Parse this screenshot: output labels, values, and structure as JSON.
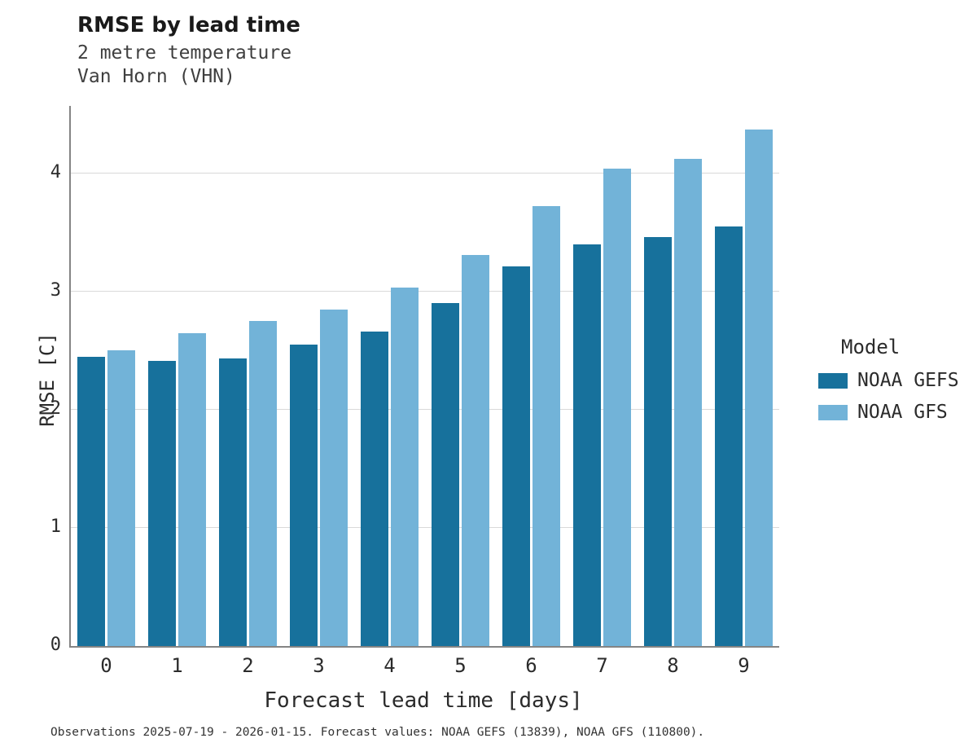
{
  "header": {
    "title": "RMSE by lead time",
    "subtitle_line1": "2 metre temperature",
    "subtitle_line2": "Van Horn (VHN)"
  },
  "chart_data": {
    "type": "bar",
    "title": "RMSE by lead time",
    "subtitle": [
      "2 metre temperature",
      "Van Horn (VHN)"
    ],
    "xlabel": "Forecast lead time [days]",
    "ylabel": "RMSE [C]",
    "categories": [
      "0",
      "1",
      "2",
      "3",
      "4",
      "5",
      "6",
      "7",
      "8",
      "9"
    ],
    "series": [
      {
        "name": "NOAA GEFS",
        "color": "#17719c",
        "values": [
          2.45,
          2.41,
          2.43,
          2.55,
          2.66,
          2.9,
          3.21,
          3.4,
          3.46,
          3.55
        ]
      },
      {
        "name": "NOAA GFS",
        "color": "#72b3d8",
        "values": [
          2.5,
          2.65,
          2.75,
          2.85,
          3.03,
          3.31,
          3.72,
          4.04,
          4.12,
          4.37
        ]
      }
    ],
    "ylim": [
      0,
      4.57
    ],
    "yticks": [
      0,
      1,
      2,
      3,
      4
    ],
    "grid": true,
    "legend_title": "Model",
    "legend_position": "right"
  },
  "footer": {
    "note": "Observations 2025-07-19 - 2026-01-15. Forecast values: NOAA GEFS (13839), NOAA GFS (110800)."
  }
}
